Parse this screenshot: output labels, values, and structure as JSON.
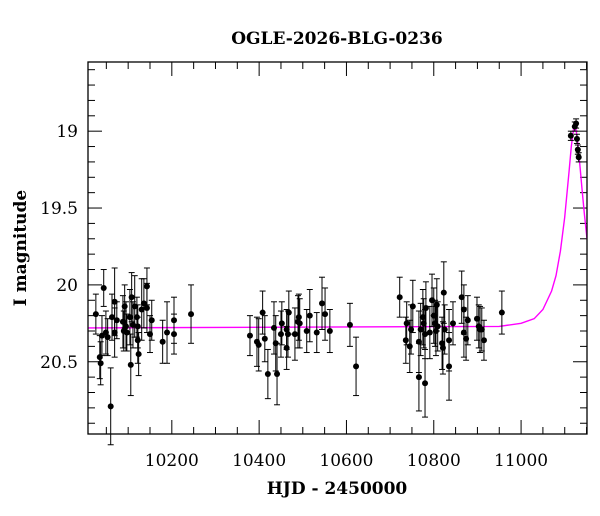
{
  "chart_data": {
    "type": "scatter",
    "title": "OGLE-2026-BLG-0236",
    "xlabel": "HJD - 2450000",
    "ylabel": "I magnitude",
    "xlim": [
      10008,
      11151
    ],
    "ylim": [
      18.55,
      20.97
    ],
    "y_inverted": true,
    "x_ticks": [
      10200,
      10400,
      10600,
      10800,
      11000
    ],
    "x_tick_labels": [
      "10200",
      "10400",
      "10600",
      "10800",
      "11000"
    ],
    "x_minor_step": 50,
    "y_ticks": [
      19,
      19.5,
      20,
      20.5
    ],
    "y_tick_labels": [
      "19",
      "19.5",
      "20",
      "20.5"
    ],
    "y_minor_step": 0.1,
    "grid": false,
    "colors": {
      "points": "#000000",
      "errorbars": "#000000",
      "model": "#ff00ff"
    },
    "series": [
      {
        "type": "scatter-errorbar",
        "points_hjd_mag_err": [
          [
            10026,
            20.19,
            0.13
          ],
          [
            10044,
            20.02,
            0.12
          ],
          [
            10035,
            20.47,
            0.14
          ],
          [
            10037,
            20.51,
            0.14
          ],
          [
            10040,
            20.33,
            0.13
          ],
          [
            10049,
            20.31,
            0.14
          ],
          [
            10053,
            20.34,
            0.12
          ],
          [
            10060,
            20.79,
            0.25
          ],
          [
            10063,
            20.21,
            0.15
          ],
          [
            10069,
            20.11,
            0.22
          ],
          [
            10069,
            20.31,
            0.16
          ],
          [
            10074,
            20.23,
            0.12
          ],
          [
            10088,
            20.24,
            0.17
          ],
          [
            10090,
            20.3,
            0.13
          ],
          [
            10092,
            20.14,
            0.14
          ],
          [
            10095,
            20.27,
            0.16
          ],
          [
            10097,
            20.31,
            0.12
          ],
          [
            10104,
            20.21,
            0.18
          ],
          [
            10108,
            20.08,
            0.16
          ],
          [
            10106,
            20.52,
            0.2
          ],
          [
            10111,
            20.26,
            0.15
          ],
          [
            10115,
            20.14,
            0.2
          ],
          [
            10120,
            20.21,
            0.13
          ],
          [
            10122,
            20.27,
            0.14
          ],
          [
            10122,
            20.36,
            0.15
          ],
          [
            10124,
            20.45,
            0.14
          ],
          [
            10131,
            20.16,
            0.2
          ],
          [
            10136,
            20.12,
            0.16
          ],
          [
            10143,
            20.01,
            0.12
          ],
          [
            10143,
            20.15,
            0.16
          ],
          [
            10150,
            20.32,
            0.12
          ],
          [
            10154,
            20.23,
            0.13
          ],
          [
            10179,
            20.37,
            0.14
          ],
          [
            10189,
            20.31,
            0.2
          ],
          [
            10205,
            20.23,
            0.15
          ],
          [
            10205,
            20.32,
            0.13
          ],
          [
            10244,
            20.19,
            0.19
          ],
          [
            10379,
            20.33,
            0.13
          ],
          [
            10395,
            20.37,
            0.16
          ],
          [
            10399,
            20.39,
            0.17
          ],
          [
            10408,
            20.18,
            0.14
          ],
          [
            10413,
            20.35,
            0.15
          ],
          [
            10420,
            20.58,
            0.16
          ],
          [
            10434,
            20.28,
            0.17
          ],
          [
            10438,
            20.38,
            0.18
          ],
          [
            10441,
            20.58,
            0.2
          ],
          [
            10450,
            20.32,
            0.15
          ],
          [
            10452,
            20.25,
            0.14
          ],
          [
            10463,
            20.29,
            0.13
          ],
          [
            10463,
            20.41,
            0.14
          ],
          [
            10468,
            20.18,
            0.14
          ],
          [
            10466,
            20.32,
            0.15
          ],
          [
            10482,
            20.32,
            0.17
          ],
          [
            10489,
            20.24,
            0.17
          ],
          [
            10491,
            20.21,
            0.15
          ],
          [
            10493,
            20.25,
            0.16
          ],
          [
            10509,
            20.3,
            0.14
          ],
          [
            10516,
            20.2,
            0.17
          ],
          [
            10532,
            20.31,
            0.13
          ],
          [
            10544,
            20.12,
            0.17
          ],
          [
            10551,
            20.19,
            0.17
          ],
          [
            10562,
            20.3,
            0.14
          ],
          [
            10608,
            20.26,
            0.14
          ],
          [
            10622,
            20.53,
            0.19
          ],
          [
            10722,
            20.08,
            0.13
          ],
          [
            10738,
            20.25,
            0.14
          ],
          [
            10736,
            20.36,
            0.15
          ],
          [
            10745,
            20.4,
            0.17
          ],
          [
            10748,
            20.29,
            0.16
          ],
          [
            10752,
            20.14,
            0.17
          ],
          [
            10766,
            20.37,
            0.2
          ],
          [
            10766,
            20.6,
            0.22
          ],
          [
            10770,
            20.29,
            0.17
          ],
          [
            10775,
            20.21,
            0.18
          ],
          [
            10777,
            20.25,
            0.16
          ],
          [
            10780,
            20.64,
            0.22
          ],
          [
            10782,
            20.15,
            0.17
          ],
          [
            10780,
            20.32,
            0.16
          ],
          [
            10791,
            20.31,
            0.17
          ],
          [
            10796,
            20.1,
            0.17
          ],
          [
            10800,
            20.2,
            0.18
          ],
          [
            10803,
            20.25,
            0.15
          ],
          [
            10805,
            20.3,
            0.16
          ],
          [
            10807,
            20.13,
            0.17
          ],
          [
            10809,
            20.27,
            0.16
          ],
          [
            10819,
            20.38,
            0.17
          ],
          [
            10821,
            20.41,
            0.17
          ],
          [
            10823,
            20.05,
            0.2
          ],
          [
            10825,
            20.29,
            0.16
          ],
          [
            10835,
            20.36,
            0.2
          ],
          [
            10835,
            20.53,
            0.22
          ],
          [
            10844,
            20.25,
            0.14
          ],
          [
            10864,
            20.08,
            0.17
          ],
          [
            10869,
            20.16,
            0.16
          ],
          [
            10869,
            20.31,
            0.16
          ],
          [
            10874,
            20.35,
            0.14
          ],
          [
            10878,
            20.23,
            0.16
          ],
          [
            10899,
            20.22,
            0.14
          ],
          [
            10903,
            20.27,
            0.14
          ],
          [
            10906,
            20.29,
            0.15
          ],
          [
            10910,
            20.29,
            0.14
          ],
          [
            10915,
            20.36,
            0.13
          ],
          [
            10956,
            20.18,
            0.14
          ],
          [
            11114,
            19.03,
            0.03
          ],
          [
            11123,
            18.97,
            0.03
          ],
          [
            11126,
            18.95,
            0.03
          ],
          [
            11128,
            19.05,
            0.03
          ],
          [
            11130,
            19.12,
            0.03
          ],
          [
            11132,
            19.17,
            0.03
          ]
        ]
      },
      {
        "type": "line",
        "model_hjd_mag": [
          [
            10008,
            20.28
          ],
          [
            10950,
            20.27
          ],
          [
            11000,
            20.25
          ],
          [
            11030,
            20.22
          ],
          [
            11050,
            20.16
          ],
          [
            11070,
            20.04
          ],
          [
            11080,
            19.94
          ],
          [
            11090,
            19.78
          ],
          [
            11100,
            19.56
          ],
          [
            11110,
            19.26
          ],
          [
            11115,
            19.1
          ],
          [
            11120,
            18.99
          ],
          [
            11123,
            18.97
          ],
          [
            11126,
            18.99
          ],
          [
            11130,
            19.08
          ],
          [
            11135,
            19.23
          ],
          [
            11140,
            19.39
          ],
          [
            11145,
            19.54
          ],
          [
            11151,
            19.7
          ]
        ]
      }
    ]
  }
}
